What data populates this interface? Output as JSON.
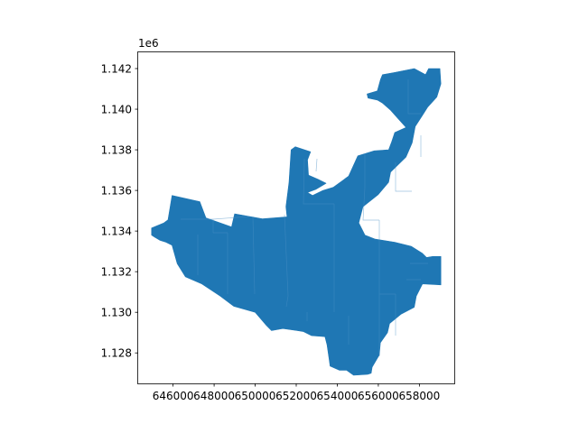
{
  "figure": {
    "offset_text": "1e6",
    "colors": {
      "fill": "#1f77b4",
      "axes": "#000000",
      "background": "#ffffff"
    }
  },
  "chart_data": {
    "type": "map",
    "xlim": [
      644300,
      659700
    ],
    "ylim": [
      1126500,
      1142800
    ],
    "x_ticks": [
      {
        "value": 646000,
        "label": "646000"
      },
      {
        "value": 648000,
        "label": "648000"
      },
      {
        "value": 650000,
        "label": "650000"
      },
      {
        "value": 652000,
        "label": "652000"
      },
      {
        "value": 654000,
        "label": "654000"
      },
      {
        "value": 656000,
        "label": "656000"
      },
      {
        "value": 658000,
        "label": "658000"
      }
    ],
    "y_ticks": [
      {
        "value": 1128000,
        "label": "1.128"
      },
      {
        "value": 1130000,
        "label": "1.130"
      },
      {
        "value": 1132000,
        "label": "1.132"
      },
      {
        "value": 1134000,
        "label": "1.134"
      },
      {
        "value": 1136000,
        "label": "1.136"
      },
      {
        "value": 1138000,
        "label": "1.138"
      },
      {
        "value": 1140000,
        "label": "1.140"
      },
      {
        "value": 1142000,
        "label": "1.142"
      }
    ],
    "region_outline": [
      [
        644950,
        1134150
      ],
      [
        645550,
        1134400
      ],
      [
        645750,
        1134550
      ],
      [
        645950,
        1135750
      ],
      [
        647300,
        1135450
      ],
      [
        647600,
        1134650
      ],
      [
        648850,
        1134200
      ],
      [
        649000,
        1134850
      ],
      [
        650350,
        1134600
      ],
      [
        651550,
        1134700
      ],
      [
        651500,
        1135200
      ],
      [
        651650,
        1136400
      ],
      [
        651750,
        1138000
      ],
      [
        651950,
        1138150
      ],
      [
        652700,
        1137900
      ],
      [
        652550,
        1137500
      ],
      [
        652600,
        1136750
      ],
      [
        653050,
        1136550
      ],
      [
        653450,
        1136350
      ],
      [
        652950,
        1136050
      ],
      [
        652550,
        1135900
      ],
      [
        652800,
        1135750
      ],
      [
        653300,
        1136000
      ],
      [
        653800,
        1136150
      ],
      [
        654550,
        1136700
      ],
      [
        655000,
        1137700
      ],
      [
        655800,
        1137950
      ],
      [
        656500,
        1138000
      ],
      [
        656650,
        1138400
      ],
      [
        656800,
        1138850
      ],
      [
        657350,
        1139100
      ],
      [
        656950,
        1139550
      ],
      [
        656600,
        1139950
      ],
      [
        656200,
        1140300
      ],
      [
        655950,
        1140450
      ],
      [
        655500,
        1140550
      ],
      [
        655450,
        1140750
      ],
      [
        655950,
        1140900
      ],
      [
        656100,
        1141450
      ],
      [
        656200,
        1141700
      ],
      [
        656750,
        1141800
      ],
      [
        657750,
        1142000
      ],
      [
        658300,
        1141700
      ],
      [
        658450,
        1142000
      ],
      [
        659000,
        1142000
      ],
      [
        659050,
        1141250
      ],
      [
        658850,
        1140600
      ],
      [
        658400,
        1140100
      ],
      [
        658150,
        1139700
      ],
      [
        657800,
        1139150
      ],
      [
        657650,
        1138350
      ],
      [
        657350,
        1137650
      ],
      [
        656600,
        1136900
      ],
      [
        656500,
        1136400
      ],
      [
        656000,
        1135800
      ],
      [
        655250,
        1135200
      ],
      [
        655050,
        1134400
      ],
      [
        655350,
        1133800
      ],
      [
        655850,
        1133600
      ],
      [
        656800,
        1133450
      ],
      [
        657600,
        1133250
      ],
      [
        658150,
        1132900
      ],
      [
        658350,
        1132700
      ],
      [
        658650,
        1132750
      ],
      [
        659050,
        1132750
      ],
      [
        659050,
        1131350
      ],
      [
        658150,
        1131400
      ],
      [
        657850,
        1130800
      ],
      [
        657750,
        1130250
      ],
      [
        657100,
        1129900
      ],
      [
        656550,
        1129450
      ],
      [
        656450,
        1129000
      ],
      [
        656100,
        1128500
      ],
      [
        656050,
        1127900
      ],
      [
        655700,
        1127300
      ],
      [
        655650,
        1127000
      ],
      [
        655500,
        1126950
      ],
      [
        654800,
        1126900
      ],
      [
        654450,
        1127150
      ],
      [
        654100,
        1127150
      ],
      [
        653650,
        1127350
      ],
      [
        653600,
        1127700
      ],
      [
        653500,
        1128400
      ],
      [
        653400,
        1128800
      ],
      [
        652750,
        1128850
      ],
      [
        652350,
        1129050
      ],
      [
        652050,
        1129100
      ],
      [
        651350,
        1129200
      ],
      [
        650800,
        1129100
      ],
      [
        650550,
        1129350
      ],
      [
        650000,
        1130000
      ],
      [
        648950,
        1130300
      ],
      [
        648300,
        1130800
      ],
      [
        647400,
        1131400
      ],
      [
        646600,
        1131750
      ],
      [
        646200,
        1132400
      ],
      [
        645950,
        1133300
      ],
      [
        645650,
        1133450
      ],
      [
        645350,
        1133550
      ],
      [
        645100,
        1133700
      ],
      [
        644950,
        1133800
      ]
    ]
  }
}
